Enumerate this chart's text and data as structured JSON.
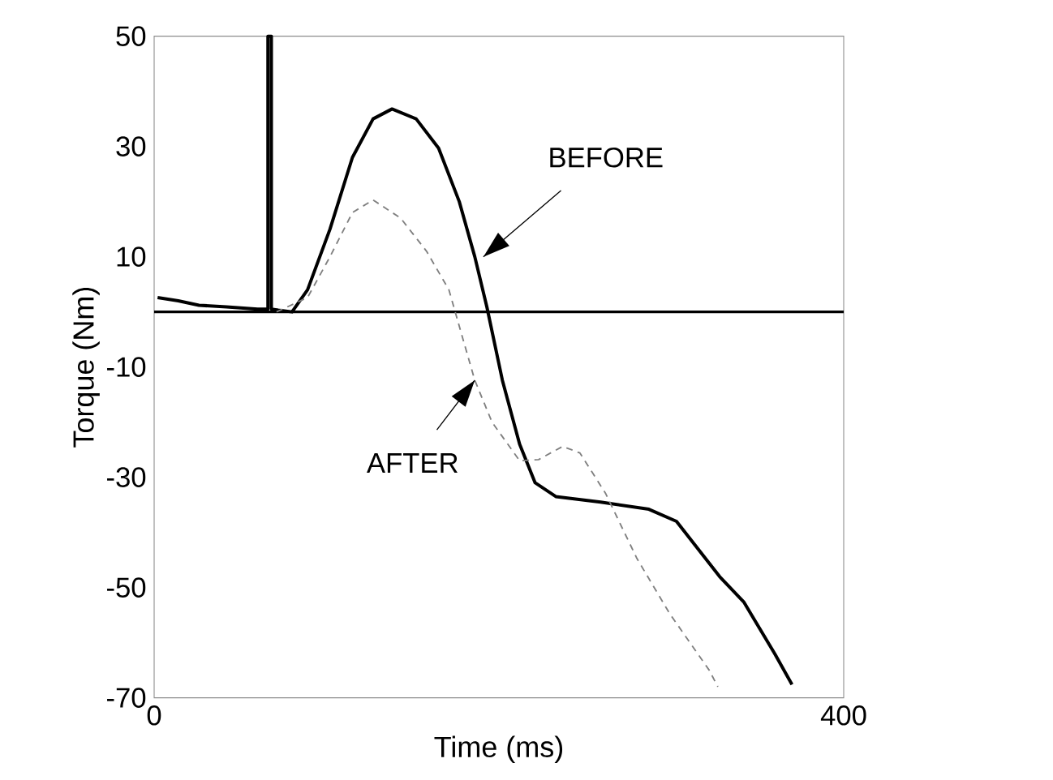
{
  "chart_data": {
    "type": "line",
    "xlabel": "Time (ms)",
    "ylabel": "Torque (Nm)",
    "xlim": [
      0,
      400
    ],
    "ylim": [
      -70,
      50
    ],
    "xticks": [
      0,
      400
    ],
    "yticks": [
      -70,
      -50,
      -30,
      -10,
      10,
      30,
      50
    ],
    "ref_lines": [
      {
        "axis": "y",
        "value": 0,
        "color": "#000000"
      }
    ],
    "annotations": [
      {
        "text": "BEFORE",
        "x": 186,
        "y": 10
      },
      {
        "text": "AFTER",
        "x": 186,
        "y": -12.4
      }
    ],
    "series": [
      {
        "color": "#000000",
        "line_style": "solid",
        "x": [
          2,
          14,
          26,
          42,
          60,
          66,
          66,
          68,
          68,
          72,
          80,
          89,
          102,
          115,
          127,
          138,
          152,
          165,
          177,
          186,
          193,
          202,
          212,
          221,
          233,
          259,
          287,
          303,
          328,
          342,
          360,
          370
        ],
        "values": [
          2.6,
          2,
          1.2,
          0.9,
          0.5,
          0.5,
          50,
          50,
          0.5,
          0.3,
          0,
          4,
          15,
          28,
          35,
          36.8,
          35,
          29.7,
          20,
          10,
          0.9,
          -12.4,
          -24,
          -31,
          -33.5,
          -34.5,
          -35.8,
          -38,
          -48,
          -52.6,
          -62,
          -67.6
        ]
      },
      {
        "color": "#808080",
        "line_style": "dashed",
        "x": [
          71,
          89,
          102,
          115,
          127,
          143,
          158,
          171,
          177,
          186,
          196,
          212,
          223,
          237,
          247,
          262,
          280,
          299,
          322,
          327
        ],
        "values": [
          0,
          2.6,
          10,
          18,
          20.3,
          17,
          11,
          4,
          -2.6,
          -12.4,
          -20,
          -27,
          -26.8,
          -24.4,
          -25.6,
          -33,
          -44.7,
          -54.7,
          -65,
          -68
        ]
      }
    ]
  }
}
